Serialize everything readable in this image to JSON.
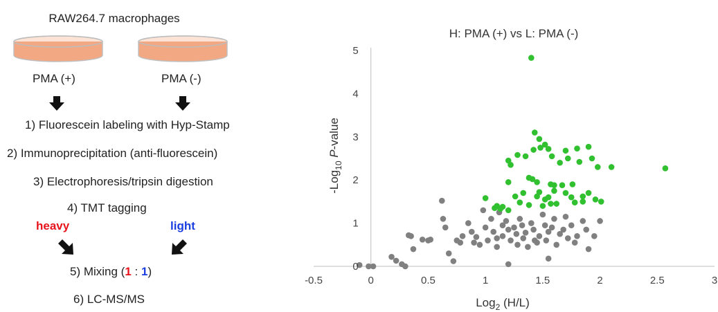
{
  "workflow": {
    "title": "RAW264.7 macrophages",
    "left_label": "PMA (+)",
    "right_label": "PMA (-)",
    "steps": [
      "1) Fluorescein labeling with Hyp-Stamp",
      "2) Immunoprecipitation (anti-fluorescein)",
      "3) Electrophoresis/tripsin digestion",
      "4) TMT tagging"
    ],
    "heavy": "heavy",
    "light": "light",
    "step5_prefix": "5) Mixing (",
    "step5_a": "1",
    "step5_sep": " : ",
    "step5_b": "1",
    "step5_suffix": ")",
    "step6": "6) LC-MS/MS",
    "colors": {
      "heavy": "#e8141b",
      "light": "#1b3fe0",
      "dish": "#f2a882"
    }
  },
  "chart_data": {
    "type": "scatter",
    "title": "H: PMA (+) vs L: PMA (-)",
    "xlabel_main": "Log",
    "xlabel_sub": "2",
    "xlabel_rest": " (H/L)",
    "ylabel_main": "-Log",
    "ylabel_sub": "10",
    "ylabel_italic": " P",
    "ylabel_rest": "-value",
    "xlim": [
      -0.5,
      3
    ],
    "ylim": [
      0,
      5
    ],
    "xticks": [
      "-0.5",
      "0",
      "0.5",
      "1",
      "1.5",
      "2",
      "2.5",
      "3"
    ],
    "yticks": [
      "0",
      "1",
      "2",
      "3",
      "4",
      "5"
    ],
    "grid": false,
    "series": [
      {
        "color": "#30c030",
        "points": [
          [
            1.4,
            4.83
          ],
          [
            1.43,
            3.1
          ],
          [
            1.47,
            2.95
          ],
          [
            1.52,
            2.82
          ],
          [
            1.55,
            2.72
          ],
          [
            1.42,
            2.7
          ],
          [
            1.48,
            2.75
          ],
          [
            1.28,
            2.58
          ],
          [
            1.35,
            2.55
          ],
          [
            1.58,
            2.55
          ],
          [
            1.7,
            2.68
          ],
          [
            1.8,
            2.73
          ],
          [
            1.9,
            2.77
          ],
          [
            1.72,
            2.5
          ],
          [
            1.93,
            2.5
          ],
          [
            1.2,
            2.45
          ],
          [
            1.22,
            2.35
          ],
          [
            1.65,
            2.4
          ],
          [
            1.82,
            2.42
          ],
          [
            1.98,
            2.3
          ],
          [
            2.1,
            2.3
          ],
          [
            2.57,
            2.27
          ],
          [
            1.38,
            2.05
          ],
          [
            1.41,
            2.02
          ],
          [
            1.2,
            1.95
          ],
          [
            1.45,
            1.95
          ],
          [
            1.57,
            1.9
          ],
          [
            1.6,
            1.88
          ],
          [
            1.67,
            1.88
          ],
          [
            1.76,
            1.9
          ],
          [
            1.6,
            1.75
          ],
          [
            1.47,
            1.72
          ],
          [
            1.33,
            1.7
          ],
          [
            1.7,
            1.7
          ],
          [
            1.45,
            1.62
          ],
          [
            1.55,
            1.6
          ],
          [
            1.75,
            1.6
          ],
          [
            1.85,
            1.62
          ],
          [
            1.9,
            1.7
          ],
          [
            1.96,
            1.55
          ],
          [
            2.01,
            1.5
          ],
          [
            1.85,
            1.5
          ],
          [
            1.78,
            1.48
          ],
          [
            1.62,
            1.45
          ],
          [
            1.38,
            1.42
          ],
          [
            1.5,
            1.4
          ],
          [
            1.1,
            1.4
          ],
          [
            1.15,
            1.38
          ],
          [
            1.08,
            1.35
          ],
          [
            1.13,
            1.33
          ],
          [
            1.2,
            1.3
          ],
          [
            1.0,
            1.58
          ],
          [
            1.26,
            1.62
          ],
          [
            1.3,
            1.48
          ],
          [
            1.52,
            1.55
          ],
          [
            1.57,
            1.45
          ]
        ]
      },
      {
        "color": "#808080",
        "points": [
          [
            -0.1,
            0.03
          ],
          [
            -0.02,
            0.0
          ],
          [
            0.02,
            0.0
          ],
          [
            0.18,
            0.22
          ],
          [
            0.22,
            0.13
          ],
          [
            0.33,
            0.72
          ],
          [
            0.35,
            0.7
          ],
          [
            0.37,
            0.4
          ],
          [
            0.45,
            0.62
          ],
          [
            0.5,
            0.6
          ],
          [
            0.52,
            0.62
          ],
          [
            0.62,
            1.52
          ],
          [
            0.63,
            1.1
          ],
          [
            0.65,
            0.9
          ],
          [
            0.68,
            0.3
          ],
          [
            0.72,
            0.12
          ],
          [
            0.75,
            0.6
          ],
          [
            0.78,
            0.55
          ],
          [
            0.8,
            0.7
          ],
          [
            0.85,
            1.0
          ],
          [
            0.88,
            0.8
          ],
          [
            0.9,
            0.55
          ],
          [
            0.92,
            0.68
          ],
          [
            0.95,
            0.5
          ],
          [
            0.98,
            1.3
          ],
          [
            1.0,
            0.9
          ],
          [
            1.02,
            0.6
          ],
          [
            1.05,
            1.1
          ],
          [
            1.07,
            0.8
          ],
          [
            1.1,
            0.45
          ],
          [
            1.1,
            0.65
          ],
          [
            1.12,
            1.25
          ],
          [
            1.15,
            0.95
          ],
          [
            1.15,
            0.7
          ],
          [
            1.18,
            1.05
          ],
          [
            1.2,
            0.85
          ],
          [
            1.2,
            0.05
          ],
          [
            1.22,
            0.6
          ],
          [
            1.25,
            0.9
          ],
          [
            1.27,
            0.75
          ],
          [
            1.28,
            0.5
          ],
          [
            1.3,
            1.1
          ],
          [
            1.32,
            0.95
          ],
          [
            1.33,
            0.65
          ],
          [
            1.35,
            0.78
          ],
          [
            1.37,
            0.45
          ],
          [
            1.4,
            1.0
          ],
          [
            1.42,
            0.85
          ],
          [
            1.43,
            0.6
          ],
          [
            1.45,
            0.55
          ],
          [
            1.47,
            0.7
          ],
          [
            1.5,
            1.2
          ],
          [
            1.52,
            0.95
          ],
          [
            1.53,
            0.6
          ],
          [
            1.55,
            0.8
          ],
          [
            1.55,
            0.18
          ],
          [
            1.58,
            0.9
          ],
          [
            1.6,
            1.1
          ],
          [
            1.62,
            0.5
          ],
          [
            1.65,
            0.75
          ],
          [
            1.68,
            0.85
          ],
          [
            1.7,
            1.15
          ],
          [
            1.72,
            0.65
          ],
          [
            1.75,
            0.95
          ],
          [
            1.78,
            0.55
          ],
          [
            1.8,
            0.7
          ],
          [
            1.85,
            1.05
          ],
          [
            1.88,
            0.85
          ],
          [
            1.9,
            0.4
          ],
          [
            1.95,
            0.7
          ],
          [
            2.0,
            1.05
          ],
          [
            0.3,
            0.0
          ],
          [
            0.27,
            0.05
          ]
        ]
      }
    ]
  }
}
